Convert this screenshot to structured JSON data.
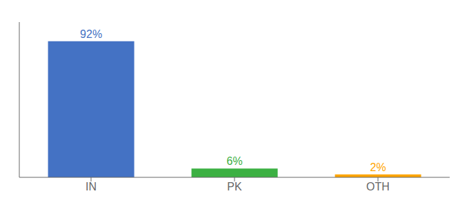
{
  "chart_data": {
    "type": "bar",
    "categories": [
      "IN",
      "PK",
      "OTH"
    ],
    "values": [
      92,
      6,
      2
    ],
    "value_labels": [
      "92%",
      "6%",
      "2%"
    ],
    "data_labels": true,
    "colors": [
      "#4472C4",
      "#3CB043",
      "#FFA500"
    ],
    "ylim": [
      0,
      105
    ],
    "grid": false,
    "tick_labels": "x"
  }
}
